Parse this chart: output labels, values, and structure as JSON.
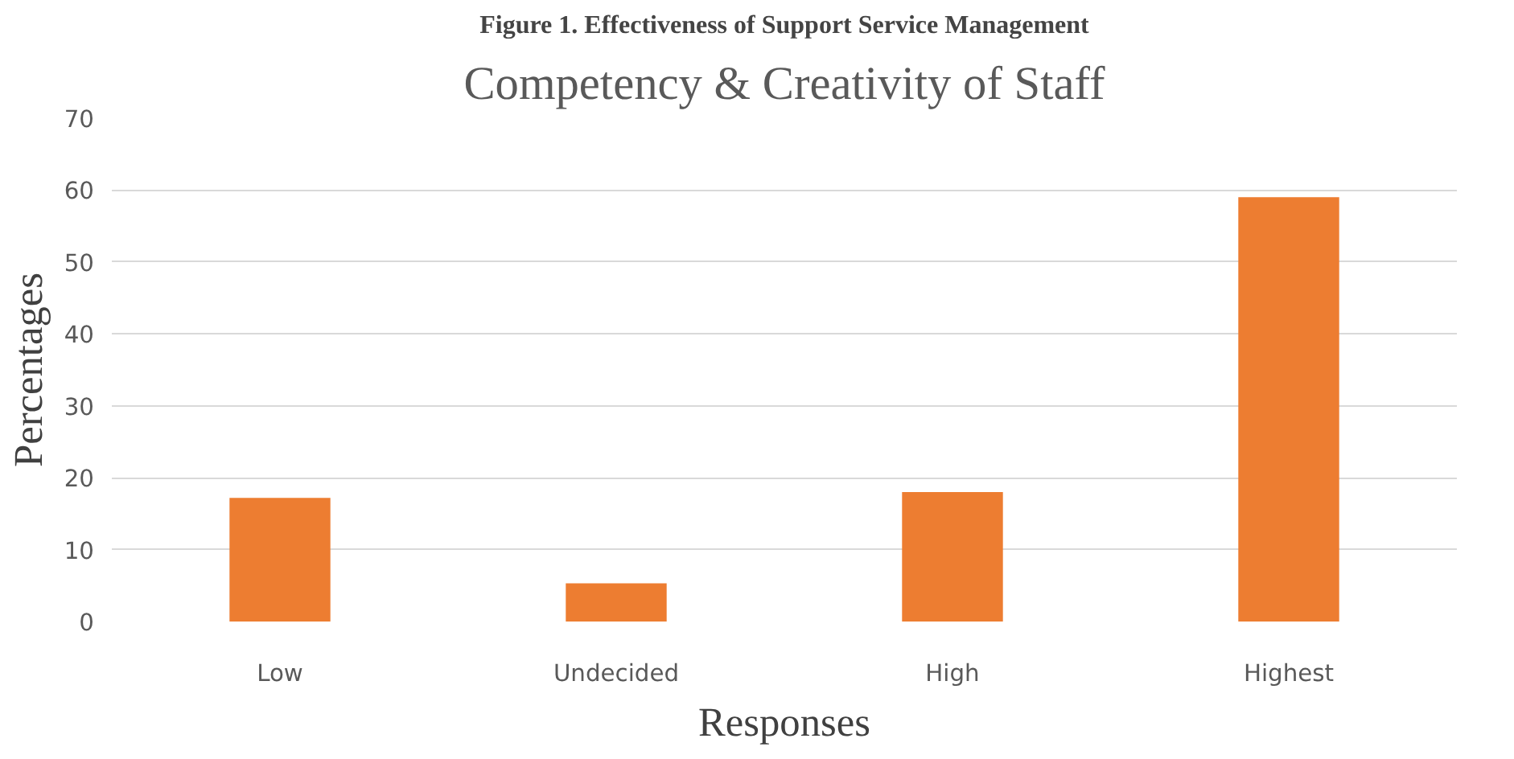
{
  "chart_data": {
    "type": "bar",
    "title": "Competency & Creativity of Staff",
    "annotations": [
      "Figure 1. Effectiveness of Support Service Management"
    ],
    "xlabel": "Responses",
    "ylabel": "Percentages",
    "categories": [
      "Low",
      "Undecided",
      "High",
      "Highest"
    ],
    "values": [
      17.2,
      5.3,
      18,
      59
    ],
    "color": "#ed7d31",
    "ylim": [
      0,
      70
    ],
    "yticks": [
      0,
      10,
      20,
      30,
      40,
      50,
      60,
      70
    ],
    "grid": "y"
  }
}
